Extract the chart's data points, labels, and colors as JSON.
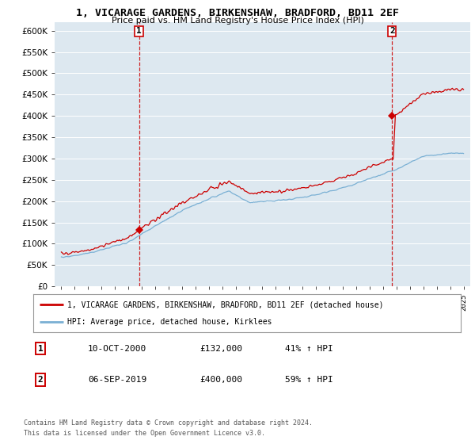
{
  "title": "1, VICARAGE GARDENS, BIRKENSHAW, BRADFORD, BD11 2EF",
  "subtitle": "Price paid vs. HM Land Registry's House Price Index (HPI)",
  "legend_line1": "1, VICARAGE GARDENS, BIRKENSHAW, BRADFORD, BD11 2EF (detached house)",
  "legend_line2": "HPI: Average price, detached house, Kirklees",
  "note_line1": "Contains HM Land Registry data © Crown copyright and database right 2024.",
  "note_line2": "This data is licensed under the Open Government Licence v3.0.",
  "table_rows": [
    {
      "num": "1",
      "date": "10-OCT-2000",
      "price": "£132,000",
      "change": "41% ↑ HPI"
    },
    {
      "num": "2",
      "date": "06-SEP-2019",
      "price": "£400,000",
      "change": "59% ↑ HPI"
    }
  ],
  "sale1_year": 2000.79,
  "sale1_price": 132000,
  "sale2_year": 2019.68,
  "sale2_price": 400000,
  "red_color": "#cc0000",
  "blue_color": "#7ab0d4",
  "ylim_min": 0,
  "ylim_max": 620000,
  "yticks": [
    0,
    50000,
    100000,
    150000,
    200000,
    250000,
    300000,
    350000,
    400000,
    450000,
    500000,
    550000,
    600000
  ],
  "xmin": 1994.5,
  "xmax": 2025.5,
  "background_color": "#ffffff",
  "plot_bg_color": "#dde8f0"
}
